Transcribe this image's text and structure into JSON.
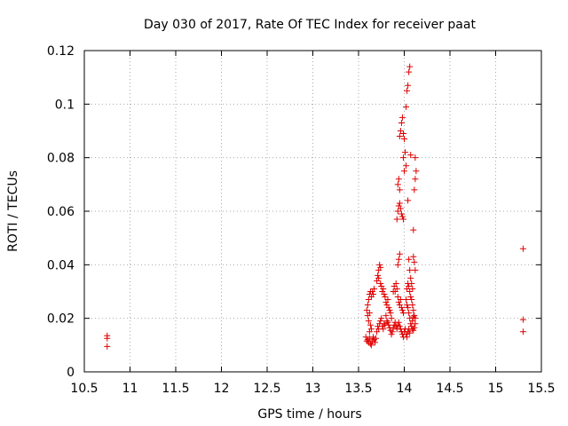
{
  "chart_data": {
    "type": "scatter",
    "title": "Day 030 of 2017, Rate Of TEC Index for receiver paat",
    "xlabel": "GPS time / hours",
    "ylabel": "ROTI / TECUs",
    "xlim": [
      10.5,
      15.5
    ],
    "ylim": [
      0,
      0.12
    ],
    "grid": true,
    "marker": "+",
    "color": "#e00000",
    "xticks": [
      10.5,
      11,
      11.5,
      12,
      12.5,
      13,
      13.5,
      14,
      14.5,
      15,
      15.5
    ],
    "xtick_labels": [
      "10.5",
      "11",
      "11.5",
      "12",
      "12.5",
      "13",
      "13.5",
      "14",
      "14.5",
      "15",
      "15.5"
    ],
    "yticks": [
      0,
      0.02,
      0.04,
      0.06,
      0.08,
      0.1,
      0.12
    ],
    "ytick_labels": [
      "0",
      "0.02",
      "0.04",
      "0.06",
      "0.08",
      "0.1",
      "0.12"
    ],
    "series": [
      {
        "name": "ROTI",
        "points": [
          [
            10.75,
            0.0135
          ],
          [
            10.75,
            0.0125
          ],
          [
            10.75,
            0.0095
          ],
          [
            13.58,
            0.013
          ],
          [
            13.59,
            0.0115
          ],
          [
            13.6,
            0.012
          ],
          [
            13.61,
            0.011
          ],
          [
            13.62,
            0.0125
          ],
          [
            13.63,
            0.0105
          ],
          [
            13.64,
            0.01
          ],
          [
            13.65,
            0.0115
          ],
          [
            13.66,
            0.013
          ],
          [
            13.67,
            0.012
          ],
          [
            13.68,
            0.011
          ],
          [
            13.69,
            0.0125
          ],
          [
            13.62,
            0.015
          ],
          [
            13.64,
            0.016
          ],
          [
            13.63,
            0.0175
          ],
          [
            13.59,
            0.023
          ],
          [
            13.6,
            0.025
          ],
          [
            13.61,
            0.027
          ],
          [
            13.62,
            0.029
          ],
          [
            13.63,
            0.03
          ],
          [
            13.64,
            0.028
          ],
          [
            13.65,
            0.03
          ],
          [
            13.66,
            0.029
          ],
          [
            13.67,
            0.031
          ],
          [
            13.6,
            0.021
          ],
          [
            13.61,
            0.019
          ],
          [
            13.62,
            0.022
          ],
          [
            13.7,
            0.015
          ],
          [
            13.71,
            0.017
          ],
          [
            13.72,
            0.016
          ],
          [
            13.73,
            0.018
          ],
          [
            13.74,
            0.019
          ],
          [
            13.75,
            0.02
          ],
          [
            13.76,
            0.017
          ],
          [
            13.77,
            0.016
          ],
          [
            13.78,
            0.018
          ],
          [
            13.79,
            0.0175
          ],
          [
            13.7,
            0.034
          ],
          [
            13.71,
            0.036
          ],
          [
            13.72,
            0.038
          ],
          [
            13.73,
            0.04
          ],
          [
            13.74,
            0.039
          ],
          [
            13.72,
            0.035
          ],
          [
            13.74,
            0.033
          ],
          [
            13.75,
            0.032
          ],
          [
            13.76,
            0.03
          ],
          [
            13.77,
            0.031
          ],
          [
            13.78,
            0.029
          ],
          [
            13.79,
            0.028
          ],
          [
            13.8,
            0.026
          ],
          [
            13.81,
            0.025
          ],
          [
            13.82,
            0.027
          ],
          [
            13.83,
            0.024
          ],
          [
            13.84,
            0.023
          ],
          [
            13.85,
            0.022
          ],
          [
            13.86,
            0.02
          ],
          [
            13.8,
            0.021
          ],
          [
            13.81,
            0.019
          ],
          [
            13.82,
            0.0185
          ],
          [
            13.83,
            0.0175
          ],
          [
            13.84,
            0.0165
          ],
          [
            13.85,
            0.0155
          ],
          [
            13.86,
            0.014
          ],
          [
            13.87,
            0.015
          ],
          [
            13.88,
            0.0165
          ],
          [
            13.89,
            0.0175
          ],
          [
            13.9,
            0.0185
          ],
          [
            13.91,
            0.017
          ],
          [
            13.92,
            0.016
          ],
          [
            13.93,
            0.0175
          ],
          [
            13.94,
            0.0185
          ],
          [
            13.95,
            0.017
          ],
          [
            13.96,
            0.016
          ],
          [
            13.97,
            0.015
          ],
          [
            13.98,
            0.014
          ],
          [
            13.99,
            0.013
          ],
          [
            14.0,
            0.015
          ],
          [
            14.01,
            0.016
          ],
          [
            13.88,
            0.03
          ],
          [
            13.89,
            0.032
          ],
          [
            13.9,
            0.03
          ],
          [
            13.91,
            0.033
          ],
          [
            13.92,
            0.031
          ],
          [
            13.93,
            0.028
          ],
          [
            13.94,
            0.026
          ],
          [
            13.95,
            0.025
          ],
          [
            13.96,
            0.027
          ],
          [
            13.97,
            0.024
          ],
          [
            13.98,
            0.023
          ],
          [
            13.99,
            0.022
          ],
          [
            13.93,
            0.04
          ],
          [
            13.94,
            0.042
          ],
          [
            13.95,
            0.044
          ],
          [
            13.92,
            0.057
          ],
          [
            13.93,
            0.06
          ],
          [
            13.94,
            0.062
          ],
          [
            13.95,
            0.063
          ],
          [
            13.96,
            0.061
          ],
          [
            13.97,
            0.059
          ],
          [
            13.98,
            0.058
          ],
          [
            13.99,
            0.057
          ],
          [
            13.93,
            0.07
          ],
          [
            13.94,
            0.072
          ],
          [
            13.95,
            0.068
          ],
          [
            13.95,
            0.088
          ],
          [
            13.96,
            0.09
          ],
          [
            13.97,
            0.093
          ],
          [
            13.98,
            0.095
          ],
          [
            13.99,
            0.089
          ],
          [
            14.0,
            0.087
          ],
          [
            14.01,
            0.082
          ],
          [
            14.02,
            0.077
          ],
          [
            14.0,
            0.075
          ],
          [
            13.99,
            0.08
          ],
          [
            14.02,
            0.099
          ],
          [
            14.03,
            0.105
          ],
          [
            14.04,
            0.107
          ],
          [
            14.05,
            0.112
          ],
          [
            14.06,
            0.114
          ],
          [
            14.07,
            0.081
          ],
          [
            14.04,
            0.064
          ],
          [
            14.05,
            0.042
          ],
          [
            14.06,
            0.038
          ],
          [
            14.07,
            0.035
          ],
          [
            14.08,
            0.033
          ],
          [
            14.09,
            0.031
          ],
          [
            14.03,
            0.031
          ],
          [
            14.04,
            0.033
          ],
          [
            14.05,
            0.032
          ],
          [
            14.06,
            0.03
          ],
          [
            14.07,
            0.028
          ],
          [
            14.08,
            0.027
          ],
          [
            14.09,
            0.025
          ],
          [
            14.1,
            0.023
          ],
          [
            14.11,
            0.021
          ],
          [
            14.12,
            0.02
          ],
          [
            14.02,
            0.027
          ],
          [
            14.03,
            0.025
          ],
          [
            14.04,
            0.024
          ],
          [
            14.05,
            0.022
          ],
          [
            14.06,
            0.02
          ],
          [
            14.07,
            0.018
          ],
          [
            14.08,
            0.017
          ],
          [
            14.09,
            0.016
          ],
          [
            14.1,
            0.0155
          ],
          [
            14.11,
            0.0165
          ],
          [
            14.12,
            0.018
          ],
          [
            14.02,
            0.014
          ],
          [
            14.03,
            0.013
          ],
          [
            14.04,
            0.015
          ],
          [
            14.05,
            0.016
          ],
          [
            14.06,
            0.0145
          ],
          [
            14.1,
            0.043
          ],
          [
            14.11,
            0.041
          ],
          [
            14.12,
            0.038
          ],
          [
            14.1,
            0.053
          ],
          [
            14.11,
            0.068
          ],
          [
            14.12,
            0.072
          ],
          [
            14.13,
            0.075
          ],
          [
            14.12,
            0.08
          ],
          [
            14.09,
            0.019
          ],
          [
            14.1,
            0.0205
          ],
          [
            15.3,
            0.046
          ],
          [
            15.3,
            0.0195
          ],
          [
            15.3,
            0.015
          ]
        ]
      }
    ]
  }
}
